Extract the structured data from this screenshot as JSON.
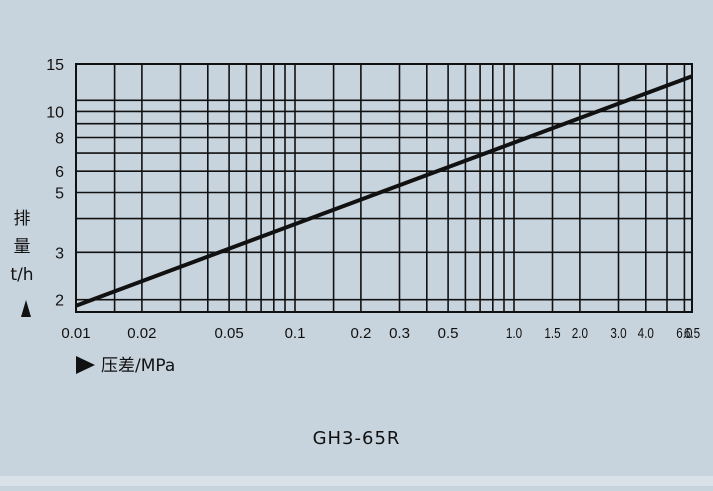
{
  "chart_data": {
    "type": "line",
    "title": "GH3-65R",
    "xlabel": "压差/MPa",
    "ylabel": [
      "排",
      "量",
      "t/h"
    ],
    "x_scale": "log",
    "y_scale": "log",
    "xlim": [
      0.01,
      6.5
    ],
    "ylim": [
      1.8,
      15
    ],
    "x_tick_labels": [
      {
        "value": 0.01,
        "label": "0.01"
      },
      {
        "value": 0.02,
        "label": "0.02"
      },
      {
        "value": 0.05,
        "label": "0.05"
      },
      {
        "value": 0.1,
        "label": "0.1"
      },
      {
        "value": 0.2,
        "label": "0.2"
      },
      {
        "value": 0.3,
        "label": "0.3"
      },
      {
        "value": 0.5,
        "label": "0.5"
      },
      {
        "value": 1.0,
        "label": "1.0"
      },
      {
        "value": 1.5,
        "label": "1.5"
      },
      {
        "value": 2.0,
        "label": "2.0"
      },
      {
        "value": 3.0,
        "label": "3.0"
      },
      {
        "value": 4.0,
        "label": "4.0"
      },
      {
        "value": 6.0,
        "label": "6.0"
      },
      {
        "value": 6.5,
        "label": "6.5"
      }
    ],
    "y_tick_labels": [
      {
        "value": 2,
        "label": "2"
      },
      {
        "value": 3,
        "label": "3"
      },
      {
        "value": 5,
        "label": "5"
      },
      {
        "value": 6,
        "label": "6"
      },
      {
        "value": 8,
        "label": "8"
      },
      {
        "value": 10,
        "label": "10"
      },
      {
        "value": 15,
        "label": "15"
      }
    ],
    "x_gridlines": [
      0.015,
      0.02,
      0.03,
      0.04,
      0.05,
      0.06,
      0.07,
      0.08,
      0.09,
      0.1,
      0.15,
      0.2,
      0.3,
      0.4,
      0.5,
      0.6,
      0.7,
      0.8,
      0.9,
      1.0,
      1.5,
      2.0,
      3.0,
      4.0,
      5.0,
      6.0
    ],
    "y_gridlines": [
      2,
      3,
      4,
      5,
      6,
      7,
      8,
      9,
      10,
      11
    ],
    "series": [
      {
        "points": [
          {
            "x": 0.01,
            "y": 1.9
          },
          {
            "x": 6.5,
            "y": 13.5
          }
        ]
      }
    ],
    "grid": true,
    "colors": {
      "background": "#c8d4dd",
      "grid": "#111111",
      "line": "#111111"
    }
  }
}
